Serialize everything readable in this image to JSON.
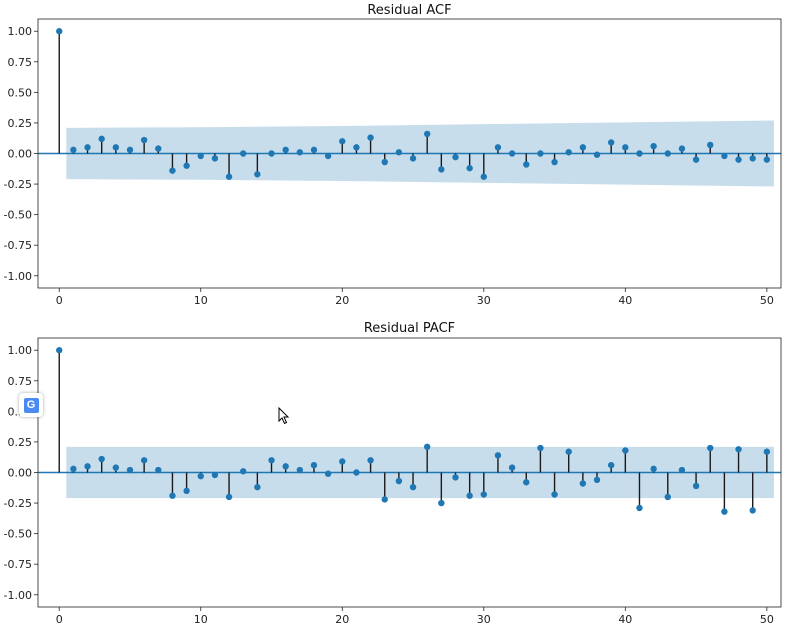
{
  "chart_data": [
    {
      "type": "stem",
      "title": "Residual ACF",
      "xlabel": "",
      "ylabel": "",
      "xlim": [
        -1.5,
        51
      ],
      "ylim": [
        -1.1,
        1.1
      ],
      "xticks": [
        0,
        10,
        20,
        30,
        40,
        50
      ],
      "xtick_labels": [
        "0",
        "10",
        "20",
        "30",
        "40",
        "50"
      ],
      "yticks": [
        1.0,
        0.75,
        0.5,
        0.25,
        0.0,
        -0.25,
        -0.5,
        -0.75,
        -1.0
      ],
      "ytick_labels": [
        "1.00",
        "0.75",
        "0.50",
        "0.25",
        "0.00",
        "-0.25",
        "-0.50",
        "-0.75",
        "-1.00"
      ],
      "grid": false,
      "confidence_band": {
        "x": [
          0.5,
          10,
          20,
          30,
          40,
          50.5
        ],
        "upper": [
          0.21,
          0.215,
          0.225,
          0.24,
          0.255,
          0.27
        ],
        "lower": [
          -0.21,
          -0.215,
          -0.225,
          -0.24,
          -0.255,
          -0.27
        ]
      },
      "x": [
        0,
        1,
        2,
        3,
        4,
        5,
        6,
        7,
        8,
        9,
        10,
        11,
        12,
        13,
        14,
        15,
        16,
        17,
        18,
        19,
        20,
        21,
        22,
        23,
        24,
        25,
        26,
        27,
        28,
        29,
        30,
        31,
        32,
        33,
        34,
        35,
        36,
        37,
        38,
        39,
        40,
        41,
        42,
        43,
        44,
        45,
        46,
        47,
        48,
        49,
        50
      ],
      "values": [
        1.0,
        0.03,
        0.05,
        0.12,
        0.05,
        0.03,
        0.11,
        0.04,
        -0.14,
        -0.1,
        -0.02,
        -0.04,
        -0.19,
        0.0,
        -0.17,
        0.0,
        0.03,
        0.01,
        0.03,
        -0.02,
        0.1,
        0.05,
        0.13,
        -0.07,
        0.01,
        -0.04,
        0.16,
        -0.13,
        -0.03,
        -0.12,
        -0.19,
        0.05,
        0.0,
        -0.09,
        0.0,
        -0.07,
        0.01,
        0.05,
        -0.01,
        0.09,
        0.05,
        0.0,
        0.06,
        0.0,
        0.04,
        -0.05,
        0.07,
        -0.02,
        -0.05,
        -0.04,
        -0.05
      ],
      "colors": {
        "marker": "#1f77b4",
        "stem": "#1a1a1a",
        "band": "#1f77b4"
      }
    },
    {
      "type": "stem",
      "title": "Residual PACF",
      "xlabel": "",
      "ylabel": "",
      "xlim": [
        -1.5,
        51
      ],
      "ylim": [
        -1.1,
        1.1
      ],
      "xticks": [
        0,
        10,
        20,
        30,
        40,
        50
      ],
      "xtick_labels": [
        "0",
        "10",
        "20",
        "30",
        "40",
        "50"
      ],
      "yticks": [
        1.0,
        0.75,
        0.5,
        0.25,
        0.0,
        -0.25,
        -0.5,
        -0.75,
        -1.0
      ],
      "ytick_labels": [
        "1.00",
        "0.75",
        "0.50",
        "0.25",
        "0.00",
        "-0.25",
        "-0.50",
        "-0.75",
        "-1.00"
      ],
      "grid": false,
      "confidence_band": {
        "x": [
          0.5,
          50.5
        ],
        "upper": [
          0.21,
          0.21
        ],
        "lower": [
          -0.21,
          -0.21
        ]
      },
      "x": [
        0,
        1,
        2,
        3,
        4,
        5,
        6,
        7,
        8,
        9,
        10,
        11,
        12,
        13,
        14,
        15,
        16,
        17,
        18,
        19,
        20,
        21,
        22,
        23,
        24,
        25,
        26,
        27,
        28,
        29,
        30,
        31,
        32,
        33,
        34,
        35,
        36,
        37,
        38,
        39,
        40,
        41,
        42,
        43,
        44,
        45,
        46,
        47,
        48,
        49,
        50
      ],
      "values": [
        1.0,
        0.03,
        0.05,
        0.11,
        0.04,
        0.02,
        0.1,
        0.02,
        -0.19,
        -0.15,
        -0.03,
        -0.02,
        -0.2,
        0.01,
        -0.12,
        0.1,
        0.05,
        0.02,
        0.06,
        -0.01,
        0.09,
        0.0,
        0.1,
        -0.22,
        -0.07,
        -0.12,
        0.21,
        -0.25,
        -0.04,
        -0.19,
        -0.18,
        0.14,
        0.04,
        -0.08,
        0.2,
        -0.18,
        0.17,
        -0.09,
        -0.06,
        0.06,
        0.18,
        -0.29,
        0.03,
        -0.2,
        0.02,
        -0.11,
        0.2,
        -0.32,
        0.19,
        -0.31,
        0.17
      ],
      "colors": {
        "marker": "#1f77b4",
        "stem": "#1a1a1a",
        "band": "#1f77b4"
      }
    }
  ],
  "overlay": {
    "translate_badge": {
      "label": "G",
      "icon": "google-translate-icon"
    },
    "cursor": {
      "icon": "arrow-cursor-icon"
    }
  }
}
